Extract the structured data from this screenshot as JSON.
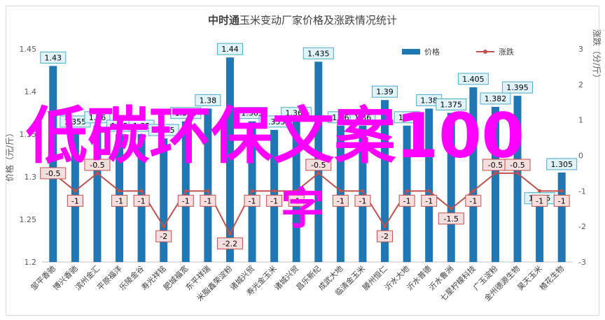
{
  "chart_data": {
    "type": "bar",
    "title_bold": "中时通",
    "title_rest": "玉米变动厂家价格及涨跌情况统计",
    "y_left_label": "价格（元/斤）",
    "y_right_label": "涨跌（分/斤）",
    "ylim_left": [
      1.2,
      1.45
    ],
    "yticks_left": [
      "1.2",
      "1.25",
      "1.3",
      "1.35",
      "1.4",
      "1.45"
    ],
    "ylim_right": [
      -3,
      3
    ],
    "yticks_right": [
      "-3",
      "-2",
      "-1",
      "0",
      "1",
      "2",
      "3"
    ],
    "categories": [
      "邹平香驰",
      "博兴香驰",
      "滨州金汇",
      "平原福洋",
      "乐陵金谷",
      "寿光祥铭",
      "肥城福宽",
      "东平祥瑞",
      "米脂鑫荣淀粉",
      "诸城兴贸",
      "寿光金玉米",
      "诸城兴贸",
      "昌乐新纪",
      "成武大地",
      "临清金玉米",
      "滕州恒仁",
      "沂水大地",
      "沂水普德",
      "沂水鲁洲",
      "七星柠檬科技",
      "广玉淀粉",
      "金州德源生物",
      "昊天玉米",
      "楂花生物"
    ],
    "legend_position": "top-right",
    "series": [
      {
        "name": "价格",
        "type": "bar",
        "color": "#1f77b4",
        "values": [
          1.43,
          1.355,
          1.36,
          1.35,
          1.35,
          1.345,
          1.365,
          1.38,
          1.44,
          1.365,
          1.355,
          1.365,
          1.435,
          1.36,
          1.36,
          1.39,
          1.36,
          1.38,
          1.375,
          1.405,
          1.382,
          1.395,
          1.265,
          1.305
        ],
        "labels": [
          "1.43",
          "1.355",
          "1.36",
          "1.35",
          "1.35",
          "1.345",
          "1.365",
          "1.38",
          "1.44",
          "1.365",
          "1.355",
          "1.365",
          "1.435",
          "1.36",
          "1.36",
          "1.39",
          "1.36",
          "1.38",
          "1.375",
          "1.405",
          "1.382",
          "1.395",
          "1.265",
          "1.305"
        ]
      },
      {
        "name": "涨跌",
        "type": "line",
        "color": "#c0504d",
        "values": [
          -0.5,
          -1,
          -0.5,
          -1,
          -1,
          -2,
          -1,
          -1,
          -2.2,
          -1,
          -1,
          -1,
          -0.5,
          -1,
          -1,
          -2,
          -1,
          -1,
          -1.5,
          -1,
          -0.5,
          -0.5,
          -1,
          -1
        ],
        "labels": [
          "-0.5",
          "-1",
          "-0.5",
          "-1",
          "-1",
          "-2",
          "-1",
          "-1",
          "-2.2",
          "-1",
          "-1",
          "-1",
          "-0.5",
          "-1",
          "-1",
          "-2",
          "-1",
          "-1",
          "-1.5",
          "-1",
          "-0.5",
          "-0.5",
          "-1",
          "-1"
        ]
      }
    ]
  },
  "overlay": {
    "line1": "低碳环保文案100",
    "line2": "字",
    "color": "#ff00ff"
  }
}
